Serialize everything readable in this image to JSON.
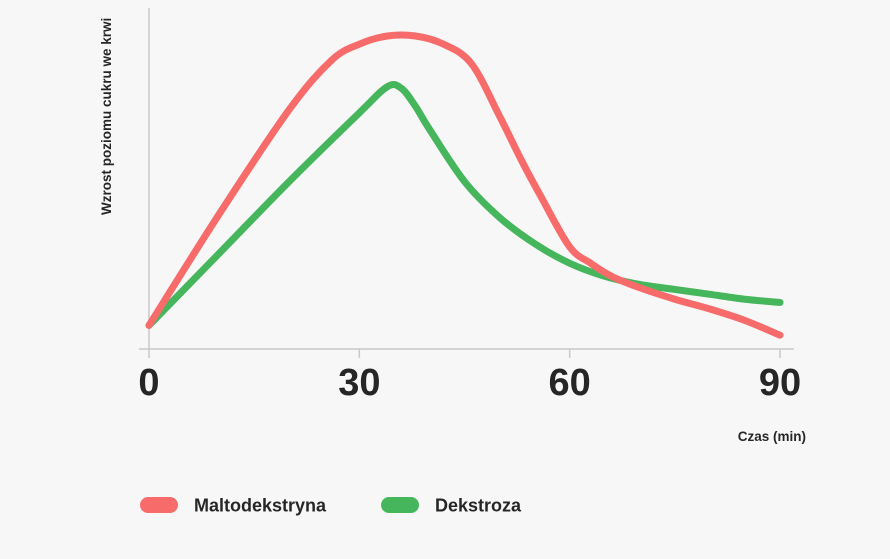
{
  "chart_data": {
    "type": "line",
    "title": "",
    "xlabel": "Czas (min)",
    "ylabel": "Wzrost poziomu cukru we krwi",
    "xlim": [
      0,
      90
    ],
    "ylim": [
      0,
      100
    ],
    "x_ticks": [
      "0",
      "30",
      "60",
      "90"
    ],
    "x_tick_values": [
      0,
      30,
      60,
      90
    ],
    "grid": false,
    "legend_position": "bottom-left",
    "series": [
      {
        "name": "Maltodekstryna",
        "color": "#f76b6b",
        "x": [
          0,
          10,
          20,
          26,
          30,
          34,
          38,
          42,
          46,
          50,
          53,
          56,
          60,
          63,
          66,
          70,
          75,
          80,
          85,
          90
        ],
        "y": [
          6,
          40,
          72,
          87,
          92,
          94.5,
          94.5,
          92,
          86,
          70,
          57,
          45,
          30,
          25,
          21,
          17.5,
          14,
          11,
          7.5,
          3
        ]
      },
      {
        "name": "Dekstroza",
        "color": "#46b65c",
        "x": [
          0,
          10,
          20,
          30,
          34,
          36,
          38,
          40,
          45,
          50,
          55,
          60,
          65,
          70,
          75,
          80,
          85,
          90
        ],
        "y": [
          6,
          28,
          50,
          71,
          79,
          78.5,
          73,
          66,
          50,
          39,
          31,
          25,
          21,
          18.5,
          17,
          15.5,
          14,
          13
        ]
      }
    ]
  }
}
